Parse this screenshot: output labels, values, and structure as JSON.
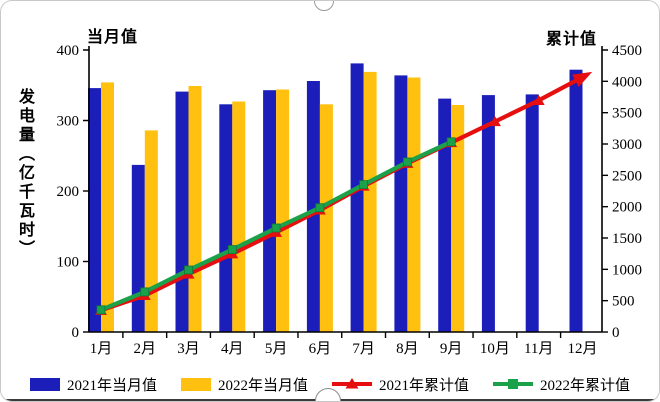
{
  "chart_data": {
    "type": "bar+line combo",
    "title": "",
    "categories": [
      "1月",
      "2月",
      "3月",
      "4月",
      "5月",
      "6月",
      "7月",
      "8月",
      "9月",
      "10月",
      "11月",
      "12月"
    ],
    "series": [
      {
        "name": "2021年当月值",
        "kind": "bar",
        "axis": "left",
        "color": "#1C1EB9",
        "marker": "none",
        "values": [
          346,
          237,
          341,
          323,
          343,
          356,
          381,
          364,
          331,
          336,
          337,
          372
        ]
      },
      {
        "name": "2022年当月值",
        "kind": "bar",
        "axis": "left",
        "color": "#FFC010",
        "marker": "none",
        "values": [
          354,
          286,
          349,
          327,
          344,
          323,
          369,
          361,
          322
        ]
      },
      {
        "name": "2021年累计值",
        "kind": "line",
        "axis": "right",
        "color": "#E60E0E",
        "marker": "triangle",
        "values": [
          346,
          583,
          924,
          1247,
          1590,
          1946,
          2327,
          2691,
          3022,
          3358,
          3695,
          4067
        ]
      },
      {
        "name": "2022年累计值",
        "kind": "line",
        "axis": "right",
        "color": "#1BA14A",
        "marker": "square",
        "values": [
          354,
          640,
          989,
          1316,
          1660,
          1983,
          2352,
          2713,
          3035
        ]
      }
    ],
    "left_axis": {
      "title": "当月值",
      "min": 0,
      "max": 400,
      "step": 100,
      "ticks": [
        0,
        100,
        200,
        300,
        400
      ]
    },
    "right_axis": {
      "title": "累计值",
      "min": 0,
      "max": 4500,
      "step": 500,
      "ticks": [
        0,
        500,
        1000,
        1500,
        2000,
        2500,
        3000,
        3500,
        4000,
        4500
      ]
    },
    "ylabel": "发电量（亿千瓦时）",
    "xlabel": "",
    "grid": false,
    "legend_position": "bottom",
    "axis_color": "#000000"
  }
}
